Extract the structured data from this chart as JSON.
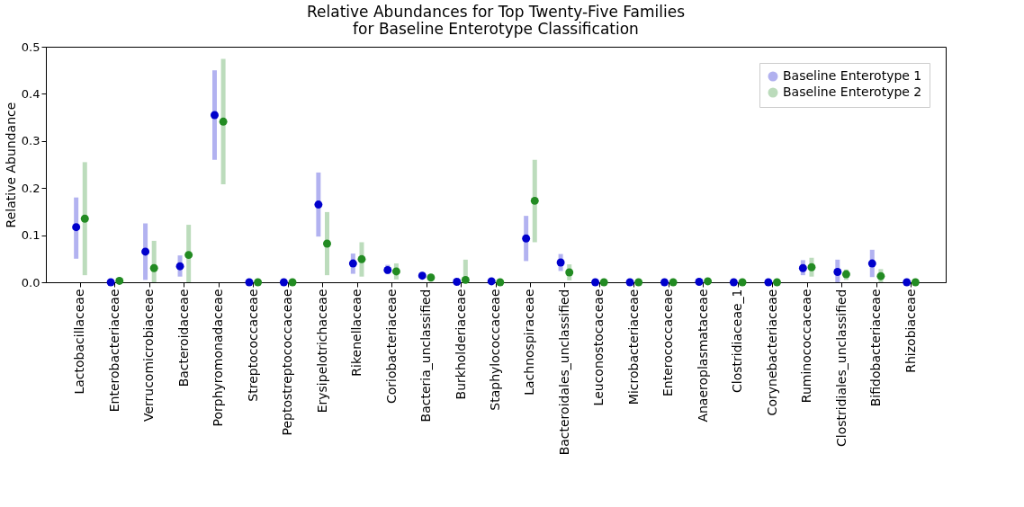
{
  "chart_data": {
    "type": "scatter",
    "title": "Relative Abundances for Top Twenty-Five Families\nfor Baseline Enterotype Classification",
    "ylabel": "Relative Abundance",
    "categories": [
      "Lactobacillaceae",
      "Enterobacteriaceae",
      "Verrucomicrobiaceae",
      "Bacteroidaceae",
      "Porphyromonadaceae",
      "Streptococcaceae",
      "Peptostreptococcaceae",
      "Erysipelotrichaceae",
      "Rikenellaceae",
      "Coriobacteriaceae",
      "Bacteria_unclassified",
      "Burkholderiaceae",
      "Staphylococcaceae",
      "Lachnospiraceae",
      "Bacteroidales_unclassified",
      "Leuconostocaceae",
      "Microbacteriaceae",
      "Enterococcaceae",
      "Anaeroplasmataceae",
      "Clostridiaceae_1",
      "Corynebacteriaceae",
      "Ruminococcaceae",
      "Clostridiales_unclassified",
      "Bifidobacteriaceae",
      "Rhizobiaceae"
    ],
    "series": [
      {
        "name": "Baseline Enterotype 1",
        "color": "#0000cc",
        "values": [
          0.117,
          0.0,
          0.065,
          0.034,
          0.355,
          0.0,
          0.0,
          0.165,
          0.04,
          0.026,
          0.014,
          0.001,
          0.002,
          0.093,
          0.042,
          0.0,
          0.0,
          0.0,
          0.001,
          0.0,
          0.0,
          0.03,
          0.022,
          0.04,
          0.0
        ],
        "errors": [
          [
            0.05,
            0.18
          ],
          null,
          [
            0.005,
            0.125
          ],
          [
            0.012,
            0.057
          ],
          [
            0.26,
            0.45
          ],
          null,
          null,
          [
            0.097,
            0.233
          ],
          [
            0.018,
            0.061
          ],
          [
            0.017,
            0.037
          ],
          null,
          null,
          null,
          [
            0.045,
            0.141
          ],
          [
            0.024,
            0.06
          ],
          null,
          null,
          null,
          null,
          null,
          null,
          [
            0.015,
            0.047
          ],
          [
            0.0,
            0.048
          ],
          [
            0.011,
            0.069
          ],
          null
        ]
      },
      {
        "name": "Baseline Enterotype 2",
        "color": "#228b22",
        "values": [
          0.135,
          0.003,
          0.03,
          0.058,
          0.341,
          0.0,
          0.0,
          0.082,
          0.049,
          0.023,
          0.01,
          0.005,
          0.0,
          0.173,
          0.021,
          0.0,
          0.0,
          0.0,
          0.002,
          0.0,
          0.0,
          0.032,
          0.017,
          0.013,
          0.0
        ],
        "errors": [
          [
            0.015,
            0.255
          ],
          [
            0.0,
            0.008
          ],
          [
            0.0,
            0.088
          ],
          [
            0.0,
            0.122
          ],
          [
            0.208,
            0.474
          ],
          null,
          null,
          [
            0.015,
            0.149
          ],
          [
            0.012,
            0.085
          ],
          [
            0.006,
            0.04
          ],
          null,
          [
            0.0,
            0.048
          ],
          null,
          [
            0.085,
            0.26
          ],
          [
            0.004,
            0.038
          ],
          null,
          null,
          null,
          null,
          null,
          null,
          [
            0.012,
            0.052
          ],
          [
            0.005,
            0.027
          ],
          [
            0.0,
            0.028
          ],
          null
        ]
      }
    ],
    "ylim": [
      0,
      0.5
    ],
    "yticks": [
      {
        "value": 0,
        "label": "0.0"
      },
      {
        "value": 0.1,
        "label": "0.1"
      },
      {
        "value": 0.2,
        "label": "0.2"
      },
      {
        "value": 0.3,
        "label": "0.3"
      },
      {
        "value": 0.4,
        "label": "0.4"
      },
      {
        "value": 0.5,
        "label": "0.5"
      }
    ],
    "legend": "top right",
    "grid": false,
    "marker": "circle"
  }
}
